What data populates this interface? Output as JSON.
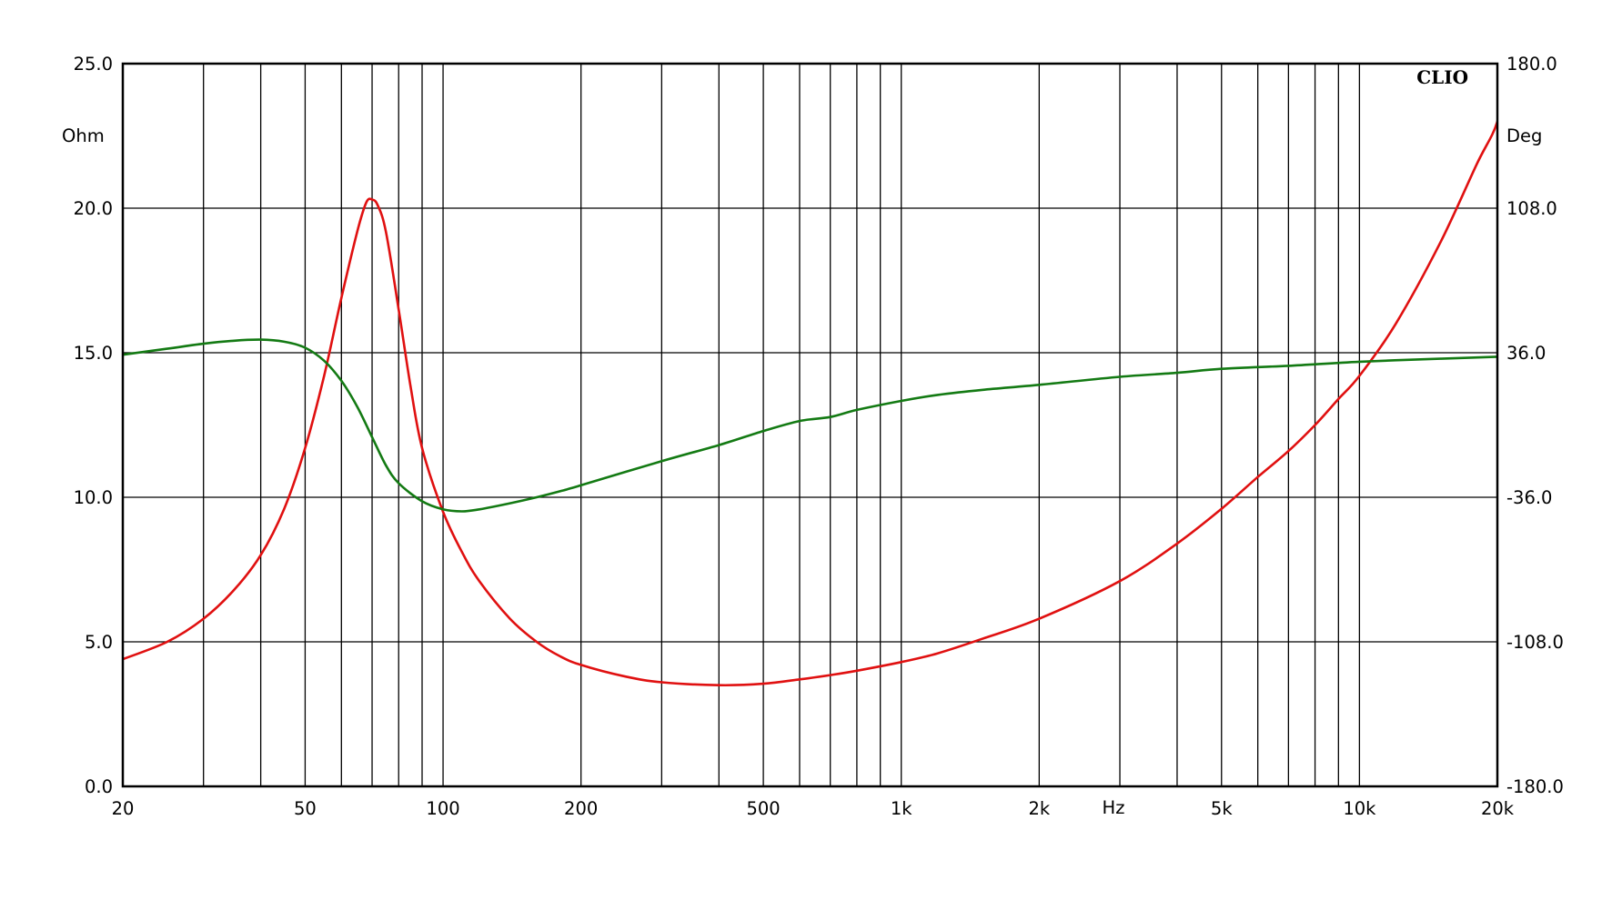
{
  "chart_data": {
    "type": "line",
    "brand": "CLIO",
    "x_scale": "log",
    "xlim": [
      20,
      20000
    ],
    "x_ticks": [
      {
        "value": 20,
        "label": "20"
      },
      {
        "value": 50,
        "label": "50"
      },
      {
        "value": 100,
        "label": "100"
      },
      {
        "value": 200,
        "label": "200"
      },
      {
        "value": 500,
        "label": "500"
      },
      {
        "value": 1000,
        "label": "1k"
      },
      {
        "value": 2000,
        "label": "2k"
      },
      {
        "value": 5000,
        "label": "5k"
      },
      {
        "value": 10000,
        "label": "10k"
      },
      {
        "value": 20000,
        "label": "20k"
      }
    ],
    "xlabel": "Hz",
    "x_grid": [
      20,
      30,
      40,
      50,
      60,
      70,
      80,
      90,
      100,
      200,
      300,
      400,
      500,
      600,
      700,
      800,
      900,
      1000,
      2000,
      3000,
      4000,
      5000,
      6000,
      7000,
      8000,
      9000,
      10000,
      20000
    ],
    "y_left": {
      "label": "Ohm",
      "lim": [
        0,
        25
      ],
      "ticks": [
        {
          "value": 0,
          "label": "0.0"
        },
        {
          "value": 5,
          "label": "5.0"
        },
        {
          "value": 10,
          "label": "10.0"
        },
        {
          "value": 15,
          "label": "15.0"
        },
        {
          "value": 20,
          "label": "20.0"
        },
        {
          "value": 25,
          "label": "25.0"
        }
      ]
    },
    "y_right": {
      "label": "Deg",
      "lim": [
        -180,
        180
      ],
      "ticks": [
        {
          "value": -180,
          "label": "-180.0"
        },
        {
          "value": -108,
          "label": "-108.0"
        },
        {
          "value": -36,
          "label": "-36.0"
        },
        {
          "value": 36,
          "label": "36.0"
        },
        {
          "value": 108,
          "label": "108.0"
        },
        {
          "value": 180,
          "label": "180.0"
        }
      ]
    },
    "grid": true,
    "series": [
      {
        "axis": "left",
        "color": "#e01010",
        "points": [
          [
            20,
            4.4
          ],
          [
            25,
            5.0
          ],
          [
            30,
            5.8
          ],
          [
            35,
            6.8
          ],
          [
            40,
            8.0
          ],
          [
            45,
            9.6
          ],
          [
            50,
            11.7
          ],
          [
            55,
            14.2
          ],
          [
            60,
            16.9
          ],
          [
            65,
            19.2
          ],
          [
            68,
            20.2
          ],
          [
            70,
            20.3
          ],
          [
            72,
            20.1
          ],
          [
            75,
            19.2
          ],
          [
            80,
            16.5
          ],
          [
            85,
            13.8
          ],
          [
            90,
            11.7
          ],
          [
            100,
            9.5
          ],
          [
            110,
            8.1
          ],
          [
            120,
            7.1
          ],
          [
            140,
            5.8
          ],
          [
            160,
            5.0
          ],
          [
            180,
            4.5
          ],
          [
            200,
            4.2
          ],
          [
            250,
            3.8
          ],
          [
            300,
            3.6
          ],
          [
            400,
            3.5
          ],
          [
            500,
            3.55
          ],
          [
            600,
            3.7
          ],
          [
            700,
            3.85
          ],
          [
            800,
            4.0
          ],
          [
            1000,
            4.3
          ],
          [
            1200,
            4.6
          ],
          [
            1500,
            5.1
          ],
          [
            2000,
            5.8
          ],
          [
            3000,
            7.1
          ],
          [
            4000,
            8.4
          ],
          [
            5000,
            9.6
          ],
          [
            6000,
            10.7
          ],
          [
            7000,
            11.6
          ],
          [
            8000,
            12.5
          ],
          [
            9000,
            13.4
          ],
          [
            10000,
            14.2
          ],
          [
            12000,
            16.0
          ],
          [
            15000,
            18.8
          ],
          [
            18000,
            21.5
          ],
          [
            20000,
            23.0
          ],
          [
            21000,
            24.9
          ]
        ]
      },
      {
        "axis": "right",
        "color": "#137a13",
        "points": [
          [
            20,
            35
          ],
          [
            25,
            38
          ],
          [
            30,
            40.5
          ],
          [
            35,
            42
          ],
          [
            40,
            42.5
          ],
          [
            45,
            41.5
          ],
          [
            50,
            38.5
          ],
          [
            55,
            32
          ],
          [
            60,
            22
          ],
          [
            65,
            9
          ],
          [
            70,
            -6
          ],
          [
            75,
            -20
          ],
          [
            80,
            -29
          ],
          [
            90,
            -38
          ],
          [
            100,
            -42
          ],
          [
            110,
            -43
          ],
          [
            120,
            -42
          ],
          [
            140,
            -39
          ],
          [
            160,
            -36
          ],
          [
            180,
            -33
          ],
          [
            200,
            -30
          ],
          [
            300,
            -18
          ],
          [
            400,
            -10
          ],
          [
            500,
            -3
          ],
          [
            600,
            2
          ],
          [
            700,
            4
          ],
          [
            800,
            7.5
          ],
          [
            1000,
            12
          ],
          [
            1200,
            15
          ],
          [
            1500,
            17.5
          ],
          [
            2000,
            20
          ],
          [
            3000,
            24
          ],
          [
            4000,
            26
          ],
          [
            5000,
            28
          ],
          [
            7000,
            29.5
          ],
          [
            10000,
            31.5
          ],
          [
            15000,
            33
          ],
          [
            20000,
            34
          ],
          [
            21000,
            34.3
          ]
        ]
      }
    ]
  },
  "colors": {
    "grid": "#000000",
    "background": "#ffffff",
    "impedance": "#e01010",
    "phase": "#137a13"
  }
}
